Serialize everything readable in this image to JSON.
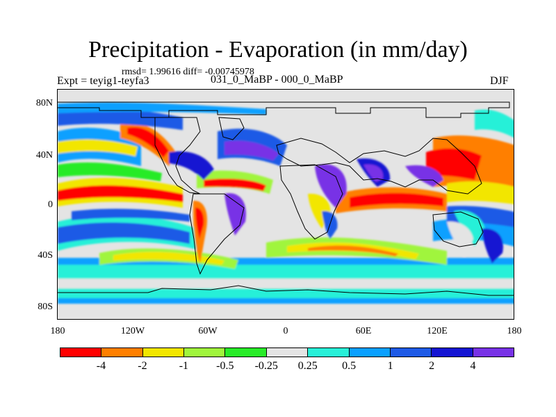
{
  "title": "Precipitation - Evaporation (in mm/day)",
  "stats_text": "rmsd= 1.99616 diff= -0.00745978",
  "experiment_text": "Expt = teyig1-teyfa3",
  "comparison_text": "031_0_MaBP - 000_0_MaBP",
  "season": "DJF",
  "map": {
    "lat_ticks": [
      "80N",
      "40N",
      "0",
      "40S",
      "80S"
    ],
    "lon_ticks": [
      "180",
      "120W",
      "60W",
      "0",
      "60E",
      "120E",
      "180"
    ],
    "background_color": "#e4e4e4"
  },
  "colorbar": {
    "colors": [
      "#ff0000",
      "#ff7f00",
      "#f2e600",
      "#a0f53c",
      "#28eb28",
      "#e4e4e4",
      "#28f0d8",
      "#0aa0ff",
      "#1e5ae6",
      "#1414d2",
      "#7832e6"
    ],
    "labels": [
      "-4",
      "-2",
      "-1",
      "-0.5",
      "-0.25",
      "0.25",
      "0.5",
      "1",
      "2",
      "4"
    ]
  }
}
